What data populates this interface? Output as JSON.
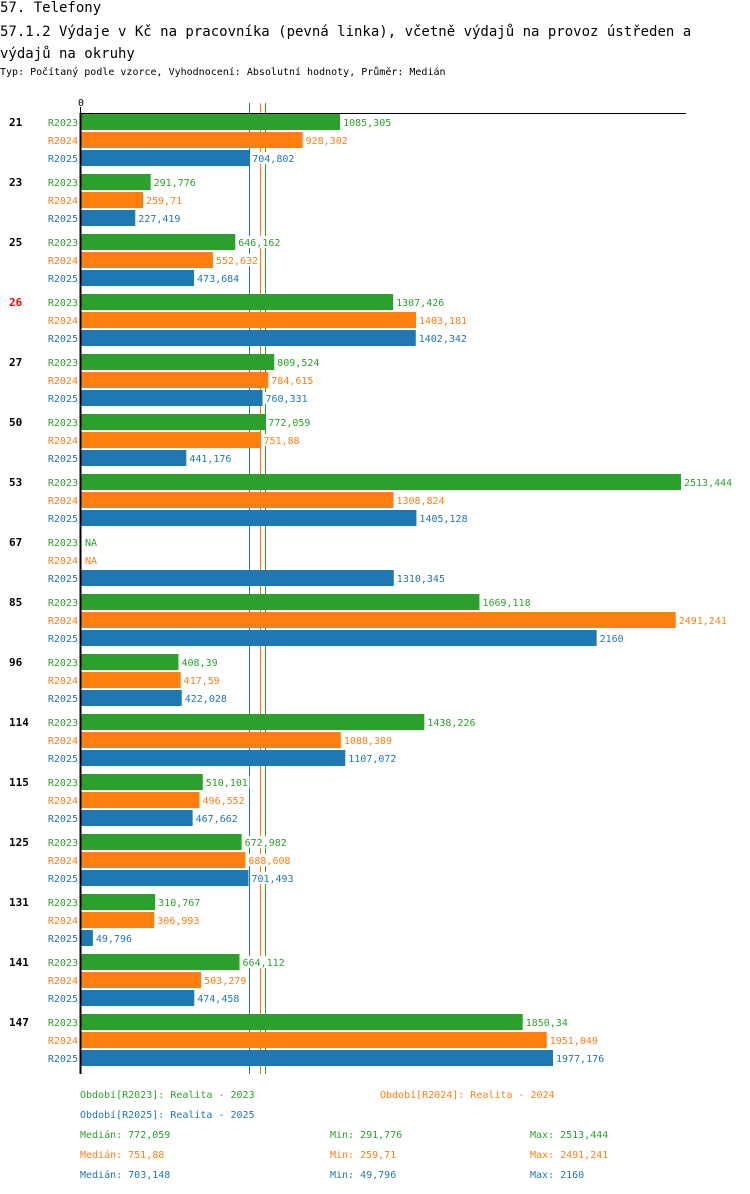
{
  "header": {
    "section": "57. Telefony",
    "title": "57.1.2 Výdaje v Kč na pracovníka (pevná linka), včetně výdajů na provoz ústředen a výdajů na okruhy",
    "subtitle": "Typ: Počítaný podle vzorce, Vyhodnocení: Absolutní hodnoty, Průměr: Medián"
  },
  "colors": {
    "R2023": "#2ca02c",
    "R2024": "#ff7f0e",
    "R2025": "#1f77b4",
    "highlight": "#ff0000",
    "axis": "#000000"
  },
  "chart_data": {
    "type": "bar",
    "orientation": "horizontal",
    "title": "57.1.2 Výdaje v Kč na pracovníka (pevná linka), včetně výdajů na provoz ústředen a výdajů na okruhy",
    "xlabel": "",
    "ylabel": "",
    "x_tick_labels": [
      "0"
    ],
    "xlim": [
      0,
      2513.444
    ],
    "highlighted_category": "26",
    "categories": [
      "21",
      "23",
      "25",
      "26",
      "27",
      "50",
      "53",
      "67",
      "85",
      "96",
      "114",
      "115",
      "125",
      "131",
      "141",
      "147"
    ],
    "series": [
      {
        "name": "R2023",
        "values": [
          1085.305,
          291.776,
          646.162,
          1307.426,
          809.524,
          772.059,
          2513.444,
          null,
          1669.118,
          408.39,
          1438.226,
          510.101,
          672.982,
          310.767,
          664.112,
          1850.34
        ],
        "labels": [
          "1085,305",
          "291,776",
          "646,162",
          "1307,426",
          "809,524",
          "772,059",
          "2513,444",
          "NA",
          "1669,118",
          "408,39",
          "1438,226",
          "510,101",
          "672,982",
          "310,767",
          "664,112",
          "1850,34"
        ]
      },
      {
        "name": "R2024",
        "values": [
          928.302,
          259.71,
          552.632,
          1403.181,
          784.615,
          751.88,
          1308.824,
          null,
          2491.241,
          417.59,
          1088.389,
          496.552,
          688.608,
          306.993,
          503.279,
          1951.049
        ],
        "labels": [
          "928,302",
          "259,71",
          "552,632",
          "1403,181",
          "784,615",
          "751,88",
          "1308,824",
          "NA",
          "2491,241",
          "417,59",
          "1088,389",
          "496,552",
          "688,608",
          "306,993",
          "503,279",
          "1951,049"
        ]
      },
      {
        "name": "R2025",
        "values": [
          704.802,
          227.419,
          473.684,
          1402.342,
          760.331,
          441.176,
          1405.128,
          1310.345,
          2160,
          422.028,
          1107.072,
          467.662,
          701.493,
          49.796,
          474.458,
          1977.176
        ],
        "labels": [
          "704,802",
          "227,419",
          "473,684",
          "1402,342",
          "760,331",
          "441,176",
          "1405,128",
          "1310,345",
          "2160",
          "422,028",
          "1107,072",
          "467,662",
          "701,493",
          "49,796",
          "474,458",
          "1977,176"
        ]
      }
    ],
    "median_lines": [
      {
        "series": "R2023",
        "value": 772.059
      },
      {
        "series": "R2024",
        "value": 751.88
      },
      {
        "series": "R2025",
        "value": 703.148
      }
    ],
    "legend": [
      {
        "series": "R2023",
        "text": "Období[R2023]: Realita - 2023"
      },
      {
        "series": "R2024",
        "text": "Období[R2024]: Realita - 2024"
      },
      {
        "series": "R2025",
        "text": "Období[R2025]: Realita - 2025"
      }
    ],
    "stats": [
      {
        "series": "R2023",
        "median": "Medián: 772,059",
        "min": "Min: 291,776",
        "max": "Max: 2513,444"
      },
      {
        "series": "R2024",
        "median": "Medián: 751,88",
        "min": "Min: 259,71",
        "max": "Max: 2491,241"
      },
      {
        "series": "R2025",
        "median": "Medián: 703,148",
        "min": "Min: 49,796",
        "max": "Max: 2160"
      }
    ],
    "legend_placement": "bottom"
  }
}
